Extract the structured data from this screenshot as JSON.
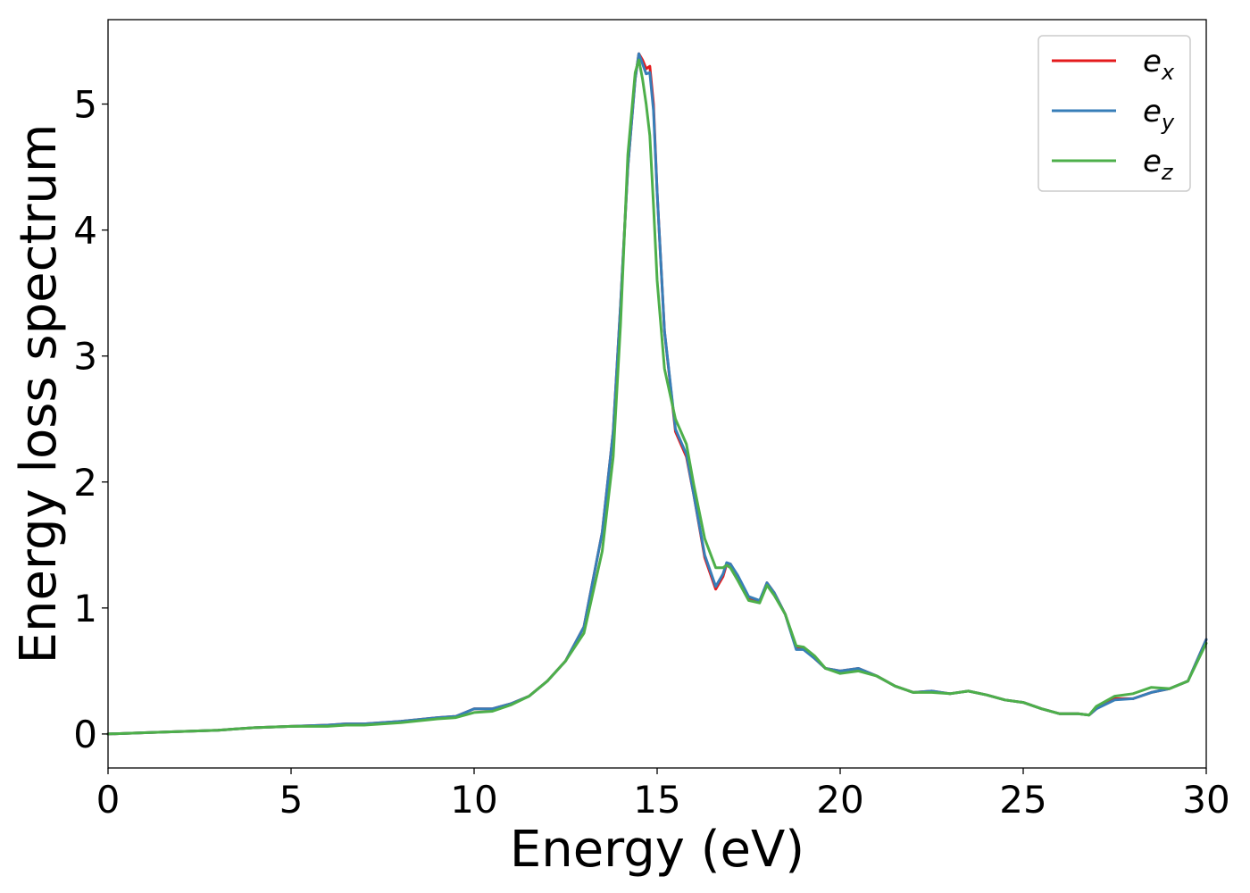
{
  "chart_data": {
    "type": "line",
    "title": "",
    "xlabel": "Energy (eV)",
    "ylabel": "Energy loss spectrum",
    "xlim": [
      0,
      30
    ],
    "ylim": [
      -0.27,
      5.67
    ],
    "xticks": [
      0,
      5,
      10,
      15,
      20,
      25,
      30
    ],
    "yticks": [
      0,
      1,
      2,
      3,
      4,
      5
    ],
    "grid": false,
    "legend": "top-right",
    "series": [
      {
        "name": "e_x",
        "label_main": "e",
        "label_sub": "x",
        "color": "#e41a1c",
        "x": [
          0,
          1,
          2,
          3,
          3.5,
          4,
          5,
          6,
          6.5,
          7,
          8,
          9,
          9.5,
          10,
          10.5,
          11,
          11.5,
          12,
          12.5,
          13,
          13.5,
          13.8,
          14.0,
          14.2,
          14.4,
          14.5,
          14.6,
          14.7,
          14.8,
          14.9,
          15.0,
          15.2,
          15.5,
          15.8,
          16.0,
          16.3,
          16.6,
          16.8,
          16.9,
          17.0,
          17.2,
          17.5,
          17.8,
          18.0,
          18.2,
          18.5,
          18.8,
          19.0,
          19.3,
          19.6,
          20.0,
          20.5,
          21.0,
          21.5,
          22.0,
          22.5,
          23.0,
          23.5,
          24.0,
          24.5,
          25.0,
          25.5,
          26.0,
          26.5,
          26.8,
          27.0,
          27.5,
          28.0,
          28.5,
          29.0,
          29.5,
          30.0
        ],
        "y": [
          0.0,
          0.01,
          0.02,
          0.03,
          0.04,
          0.05,
          0.06,
          0.07,
          0.08,
          0.08,
          0.1,
          0.13,
          0.14,
          0.2,
          0.2,
          0.24,
          0.3,
          0.42,
          0.58,
          0.85,
          1.6,
          2.4,
          3.4,
          4.5,
          5.2,
          5.4,
          5.35,
          5.28,
          5.3,
          5.0,
          4.3,
          3.2,
          2.4,
          2.2,
          1.9,
          1.4,
          1.15,
          1.25,
          1.35,
          1.35,
          1.25,
          1.08,
          1.05,
          1.2,
          1.12,
          0.95,
          0.68,
          0.68,
          0.6,
          0.52,
          0.5,
          0.52,
          0.46,
          0.38,
          0.33,
          0.34,
          0.32,
          0.34,
          0.31,
          0.27,
          0.25,
          0.2,
          0.16,
          0.16,
          0.15,
          0.2,
          0.28,
          0.28,
          0.33,
          0.36,
          0.42,
          0.75
        ]
      },
      {
        "name": "e_y",
        "label_main": "e",
        "label_sub": "y",
        "color": "#377eb8",
        "x": [
          0,
          1,
          2,
          3,
          3.5,
          4,
          5,
          6,
          6.5,
          7,
          8,
          9,
          9.5,
          10,
          10.5,
          11,
          11.5,
          12,
          12.5,
          13,
          13.5,
          13.8,
          14.0,
          14.2,
          14.4,
          14.5,
          14.6,
          14.7,
          14.8,
          14.9,
          15.0,
          15.2,
          15.5,
          15.8,
          16.0,
          16.3,
          16.6,
          16.8,
          16.9,
          17.0,
          17.2,
          17.5,
          17.8,
          18.0,
          18.2,
          18.5,
          18.8,
          19.0,
          19.3,
          19.6,
          20.0,
          20.5,
          21.0,
          21.5,
          22.0,
          22.5,
          23.0,
          23.5,
          24.0,
          24.5,
          25.0,
          25.5,
          26.0,
          26.5,
          26.8,
          27.0,
          27.5,
          28.0,
          28.5,
          29.0,
          29.5,
          30.0
        ],
        "y": [
          0.0,
          0.01,
          0.02,
          0.03,
          0.04,
          0.05,
          0.06,
          0.07,
          0.08,
          0.08,
          0.1,
          0.13,
          0.14,
          0.2,
          0.2,
          0.24,
          0.3,
          0.42,
          0.58,
          0.85,
          1.6,
          2.4,
          3.4,
          4.5,
          5.2,
          5.4,
          5.32,
          5.24,
          5.25,
          4.95,
          4.3,
          3.2,
          2.42,
          2.22,
          1.9,
          1.42,
          1.17,
          1.27,
          1.36,
          1.35,
          1.26,
          1.09,
          1.06,
          1.2,
          1.12,
          0.95,
          0.67,
          0.67,
          0.6,
          0.52,
          0.5,
          0.52,
          0.46,
          0.38,
          0.33,
          0.34,
          0.32,
          0.34,
          0.31,
          0.27,
          0.25,
          0.2,
          0.16,
          0.16,
          0.15,
          0.2,
          0.27,
          0.28,
          0.33,
          0.36,
          0.42,
          0.75
        ]
      },
      {
        "name": "e_z",
        "label_main": "e",
        "label_sub": "z",
        "color": "#4daf4a",
        "x": [
          0,
          1,
          2,
          3,
          3.5,
          4,
          5,
          6,
          6.5,
          7,
          8,
          9,
          9.5,
          10,
          10.5,
          11,
          11.5,
          12,
          12.5,
          13,
          13.5,
          13.8,
          14.0,
          14.2,
          14.4,
          14.5,
          14.6,
          14.7,
          14.8,
          14.9,
          15.0,
          15.2,
          15.5,
          15.8,
          16.0,
          16.3,
          16.6,
          16.8,
          16.9,
          17.0,
          17.2,
          17.5,
          17.8,
          18.0,
          18.2,
          18.5,
          18.8,
          19.0,
          19.3,
          19.6,
          20.0,
          20.5,
          21.0,
          21.5,
          22.0,
          22.5,
          23.0,
          23.5,
          24.0,
          24.5,
          25.0,
          25.5,
          26.0,
          26.5,
          26.8,
          27.0,
          27.5,
          28.0,
          28.5,
          29.0,
          29.5,
          30.0
        ],
        "y": [
          0.0,
          0.01,
          0.02,
          0.03,
          0.04,
          0.05,
          0.06,
          0.06,
          0.07,
          0.07,
          0.09,
          0.12,
          0.13,
          0.17,
          0.18,
          0.23,
          0.3,
          0.42,
          0.58,
          0.8,
          1.45,
          2.2,
          3.25,
          4.6,
          5.25,
          5.35,
          5.2,
          5.0,
          4.75,
          4.2,
          3.6,
          2.9,
          2.5,
          2.3,
          1.98,
          1.55,
          1.32,
          1.32,
          1.34,
          1.32,
          1.22,
          1.06,
          1.04,
          1.18,
          1.1,
          0.95,
          0.7,
          0.69,
          0.62,
          0.52,
          0.48,
          0.5,
          0.46,
          0.38,
          0.33,
          0.33,
          0.32,
          0.34,
          0.31,
          0.27,
          0.25,
          0.2,
          0.16,
          0.16,
          0.15,
          0.22,
          0.3,
          0.32,
          0.37,
          0.36,
          0.42,
          0.72
        ]
      }
    ]
  }
}
